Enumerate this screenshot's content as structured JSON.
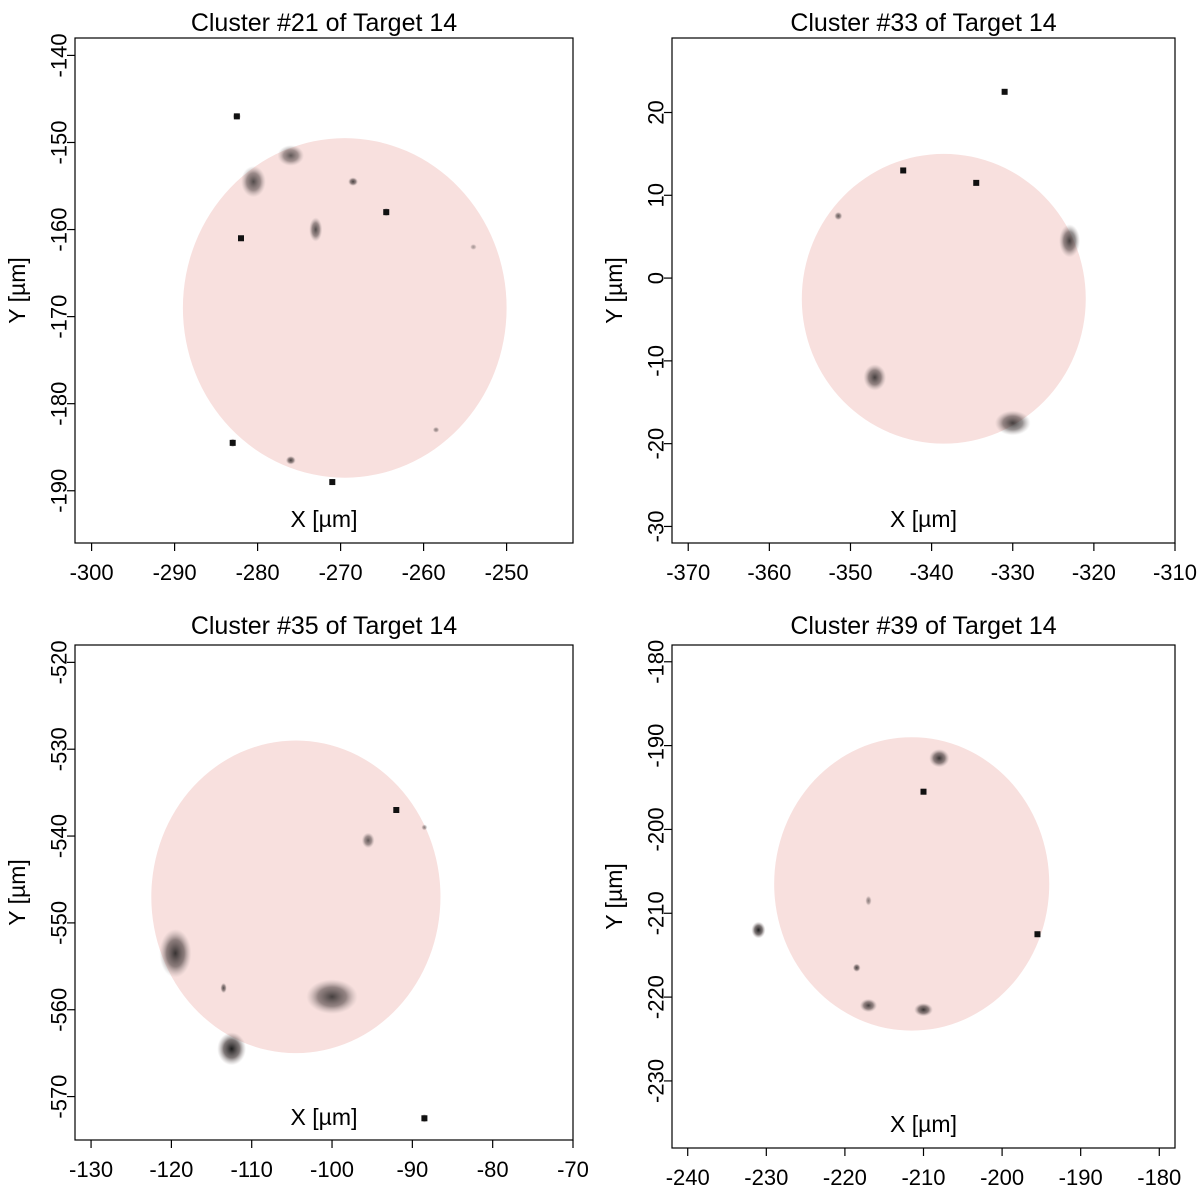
{
  "chart_data": [
    {
      "type": "heatmap",
      "title": "Cluster #21 of Target 14",
      "xlabel": "X [µm]",
      "ylabel": "Y [µm]",
      "xlim": [
        -302,
        -242
      ],
      "ylim": [
        -196,
        -138
      ],
      "xticks": [
        -300,
        -290,
        -280,
        -270,
        -260,
        -250
      ],
      "yticks": [
        -140,
        -150,
        -160,
        -170,
        -180,
        -190
      ],
      "grid": false,
      "circle": {
        "cx": -269.5,
        "cy": -169,
        "r": 19.5,
        "color": "#f8e0de"
      },
      "blobs": [
        {
          "x": -282.5,
          "y": -147,
          "rx": 0.5,
          "ry": 0.4,
          "d": 0.9
        },
        {
          "x": -280.5,
          "y": -154.5,
          "rx": 1.5,
          "ry": 1.8,
          "d": 0.7
        },
        {
          "x": -276,
          "y": -151.5,
          "rx": 1.6,
          "ry": 1.2,
          "d": 0.65
        },
        {
          "x": -273,
          "y": -160,
          "rx": 0.8,
          "ry": 1.4,
          "d": 0.7
        },
        {
          "x": -268.5,
          "y": -154.5,
          "rx": 0.6,
          "ry": 0.5,
          "d": 0.75
        },
        {
          "x": -264.5,
          "y": -158,
          "rx": 0.4,
          "ry": 0.5,
          "d": 0.85
        },
        {
          "x": -282,
          "y": -161,
          "rx": 0.3,
          "ry": 0.3,
          "d": 0.95
        },
        {
          "x": -254,
          "y": -162,
          "rx": 0.4,
          "ry": 0.3,
          "d": 0.4
        },
        {
          "x": -283,
          "y": -184.5,
          "rx": 0.3,
          "ry": 0.5,
          "d": 0.95
        },
        {
          "x": -276,
          "y": -186.5,
          "rx": 0.6,
          "ry": 0.5,
          "d": 0.75
        },
        {
          "x": -271,
          "y": -189,
          "rx": 0.3,
          "ry": 0.4,
          "d": 0.9
        },
        {
          "x": -258.5,
          "y": -183,
          "rx": 0.4,
          "ry": 0.3,
          "d": 0.5
        }
      ]
    },
    {
      "type": "heatmap",
      "title": "Cluster #33 of Target 14",
      "xlabel": "X [µm]",
      "ylabel": "Y [µm]",
      "xlim": [
        -372,
        -310
      ],
      "ylim": [
        -32,
        29
      ],
      "xticks": [
        -370,
        -360,
        -350,
        -340,
        -330,
        -320,
        -310
      ],
      "yticks": [
        20,
        10,
        0,
        -10,
        -20,
        -30
      ],
      "grid": false,
      "circle": {
        "cx": -338.5,
        "cy": -2.5,
        "r": 17.5,
        "color": "#f8e0de"
      },
      "blobs": [
        {
          "x": -331,
          "y": 22.5,
          "rx": 0.4,
          "ry": 0.4,
          "d": 0.95
        },
        {
          "x": -343.5,
          "y": 13,
          "rx": 0.3,
          "ry": 0.3,
          "d": 0.9
        },
        {
          "x": -334.5,
          "y": 11.5,
          "rx": 0.3,
          "ry": 0.3,
          "d": 0.9
        },
        {
          "x": -351.5,
          "y": 7.5,
          "rx": 0.5,
          "ry": 0.5,
          "d": 0.65
        },
        {
          "x": -323,
          "y": 4.5,
          "rx": 1.3,
          "ry": 2.0,
          "d": 0.75
        },
        {
          "x": -347,
          "y": -12,
          "rx": 1.4,
          "ry": 1.6,
          "d": 0.75
        },
        {
          "x": -330,
          "y": -17.5,
          "rx": 2.2,
          "ry": 1.5,
          "d": 0.75
        }
      ]
    },
    {
      "type": "heatmap",
      "title": "Cluster #35 of Target 14",
      "xlabel": "X [µm]",
      "ylabel": "Y [µm]",
      "xlim": [
        -132,
        -70
      ],
      "ylim": [
        -575,
        -518
      ],
      "xticks": [
        -130,
        -120,
        -110,
        -100,
        -90,
        -80,
        -70
      ],
      "yticks": [
        -520,
        -530,
        -540,
        -550,
        -560,
        -570
      ],
      "grid": false,
      "circle": {
        "cx": -104.5,
        "cy": -547,
        "r": 18,
        "color": "#f8e0de"
      },
      "blobs": [
        {
          "x": -92,
          "y": -537,
          "rx": 0.3,
          "ry": 0.3,
          "d": 0.9
        },
        {
          "x": -88.5,
          "y": -539,
          "rx": 0.3,
          "ry": 0.2,
          "d": 0.5
        },
        {
          "x": -95.5,
          "y": -540.5,
          "rx": 0.8,
          "ry": 0.9,
          "d": 0.65
        },
        {
          "x": -119.5,
          "y": -553.5,
          "rx": 2.0,
          "ry": 2.8,
          "d": 0.8
        },
        {
          "x": -113.5,
          "y": -557.5,
          "rx": 0.4,
          "ry": 0.6,
          "d": 0.7
        },
        {
          "x": -100,
          "y": -558.5,
          "rx": 3.2,
          "ry": 2.0,
          "d": 0.75
        },
        {
          "x": -112.5,
          "y": -564.5,
          "rx": 1.8,
          "ry": 1.9,
          "d": 0.9
        },
        {
          "x": -88.5,
          "y": -572.5,
          "rx": 0.3,
          "ry": 0.5,
          "d": 0.95
        }
      ]
    },
    {
      "type": "heatmap",
      "title": "Cluster #39 of Target 14",
      "xlabel": "X [µm]",
      "ylabel": "Y [µm]",
      "xlim": [
        -242,
        -178
      ],
      "ylim": [
        -238,
        -178
      ],
      "xticks": [
        -240,
        -230,
        -220,
        -210,
        -200,
        -190,
        -180
      ],
      "yticks": [
        -180,
        -190,
        -200,
        -210,
        -220,
        -230
      ],
      "grid": false,
      "circle": {
        "cx": -211.5,
        "cy": -206.5,
        "r": 17.5,
        "color": "#f8e0de"
      },
      "blobs": [
        {
          "x": -208,
          "y": -191.5,
          "rx": 1.3,
          "ry": 1.1,
          "d": 0.8
        },
        {
          "x": -210,
          "y": -195.5,
          "rx": 0.4,
          "ry": 0.4,
          "d": 0.9
        },
        {
          "x": -217,
          "y": -208.5,
          "rx": 0.4,
          "ry": 0.6,
          "d": 0.5
        },
        {
          "x": -231,
          "y": -212,
          "rx": 0.9,
          "ry": 1.0,
          "d": 0.9
        },
        {
          "x": -195.5,
          "y": -212.5,
          "rx": 0.4,
          "ry": 0.4,
          "d": 0.95
        },
        {
          "x": -218.5,
          "y": -216.5,
          "rx": 0.5,
          "ry": 0.5,
          "d": 0.75
        },
        {
          "x": -217,
          "y": -221,
          "rx": 1.1,
          "ry": 0.8,
          "d": 0.75
        },
        {
          "x": -210,
          "y": -221.5,
          "rx": 1.2,
          "ry": 0.8,
          "d": 0.8
        }
      ]
    }
  ]
}
